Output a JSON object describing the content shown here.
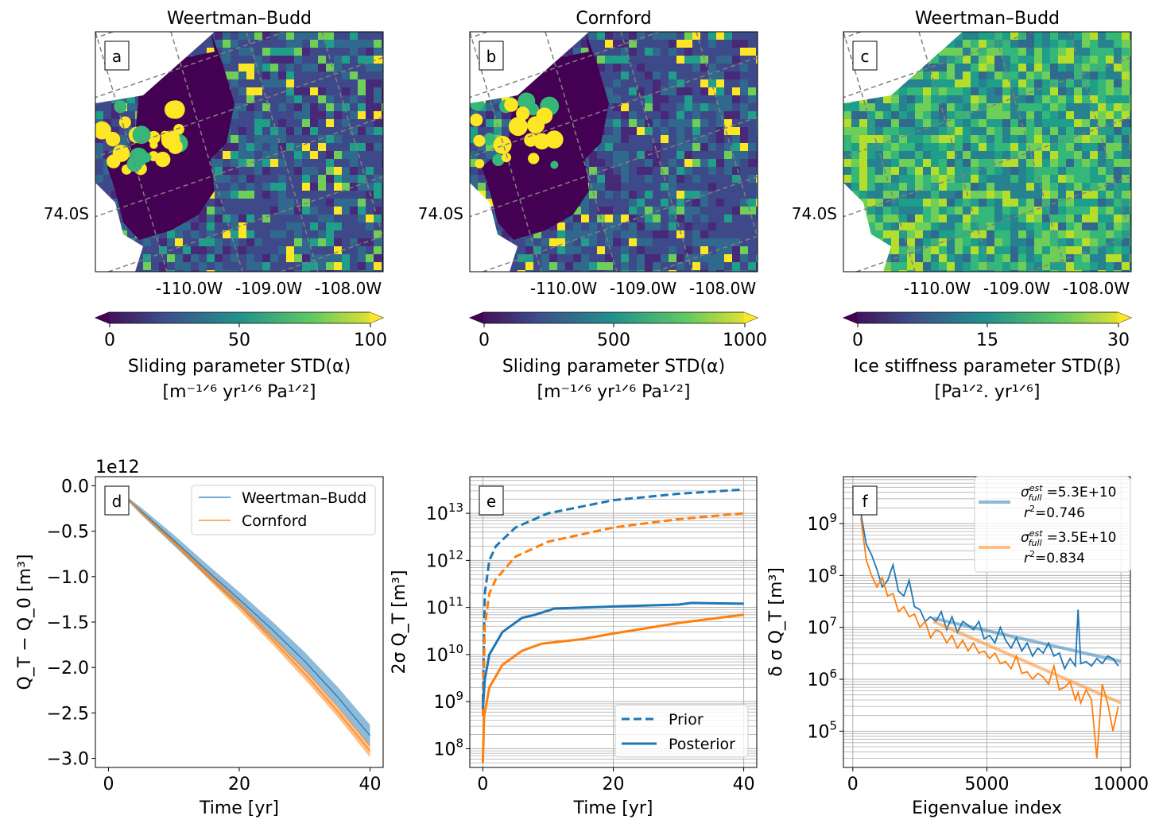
{
  "maps": [
    {
      "label": "a",
      "title": "Weertman–Budd",
      "lat_label": "74.0S",
      "lon_labels": [
        "-110.0W",
        "-109.0W",
        "-108.0W"
      ],
      "colorbar": {
        "ticks": [
          "0",
          "50",
          "100"
        ],
        "label_line1": "Sliding parameter STD(α)",
        "label_line2": "[m⁻¹ᐟ⁶ yr¹ᐟ⁶ Pa¹ᐟ²]",
        "colormap": "viridis",
        "extend": "both"
      },
      "style": "dark"
    },
    {
      "label": "b",
      "title": "Cornford",
      "lat_label": "74.0S",
      "lon_labels": [
        "-110.0W",
        "-109.0W",
        "-108.0W"
      ],
      "colorbar": {
        "ticks": [
          "0",
          "500",
          "1000"
        ],
        "label_line1": "Sliding parameter STD(α)",
        "label_line2": "[m⁻¹ᐟ⁶ yr¹ᐟ⁶ Pa¹ᐟ²]",
        "colormap": "viridis",
        "extend": "both"
      },
      "style": "dark"
    },
    {
      "label": "c",
      "title": "Weertman–Budd",
      "lat_label": "74.0S",
      "lon_labels": [
        "-110.0W",
        "-109.0W",
        "-108.0W"
      ],
      "colorbar": {
        "ticks": [
          "0",
          "15",
          "30"
        ],
        "label_line1": "Ice stiffness parameter STD(β)",
        "label_line2": "[Pa¹ᐟ². yr¹ᐟ⁶]",
        "colormap": "viridis",
        "extend": "both"
      },
      "style": "bright"
    }
  ],
  "colors": {
    "blue": "#1f77b4",
    "orange": "#ff7f0e"
  },
  "chart_data": [
    {
      "panel": "d",
      "type": "line",
      "xlabel": "Time [yr]",
      "ylabel": "Q_T − Q_0 [m³]",
      "offset_text": "1e12",
      "xlim": [
        -2,
        42
      ],
      "ylim": [
        -3.1,
        0.1
      ],
      "xticks": [
        "0",
        "20",
        "40"
      ],
      "yticks": [
        "0.0",
        "−0.5",
        "−1.0",
        "−1.5",
        "−2.0",
        "−2.5",
        "−3.0"
      ],
      "legend": "top-right",
      "grid": false,
      "x": [
        3,
        5,
        10,
        15,
        20,
        25,
        30,
        35,
        40
      ],
      "series": [
        {
          "name": "Weertman–Budd",
          "color": "#1f77b4",
          "values": [
            -0.15,
            -0.28,
            -0.6,
            -0.93,
            -1.25,
            -1.58,
            -1.93,
            -2.32,
            -2.75
          ],
          "band": [
            0.02,
            0.04,
            0.06,
            0.07,
            0.08,
            0.09,
            0.1,
            0.11,
            0.12
          ]
        },
        {
          "name": "Cornford",
          "color": "#ff7f0e",
          "values": [
            -0.15,
            -0.29,
            -0.62,
            -0.97,
            -1.32,
            -1.69,
            -2.07,
            -2.48,
            -2.92
          ],
          "band": [
            0.01,
            0.02,
            0.03,
            0.04,
            0.05,
            0.05,
            0.06,
            0.06,
            0.07
          ]
        }
      ]
    },
    {
      "panel": "e",
      "type": "line",
      "xlabel": "Time [yr]",
      "ylabel": "2σ Q_T [m³]",
      "yscale": "log",
      "xlim": [
        -2,
        42
      ],
      "ylim": [
        40000000.0,
        60000000000000.0
      ],
      "xticks": [
        "0",
        "20",
        "40"
      ],
      "yticks": [
        "10^8",
        "10^9",
        "10^10",
        "10^11",
        "10^12",
        "10^13"
      ],
      "legend": "bottom-right",
      "grid": true,
      "legend_entries": [
        {
          "name": "Prior",
          "style": "dashed"
        },
        {
          "name": "Posterior",
          "style": "solid"
        }
      ],
      "series": [
        {
          "group": "Prior",
          "color": "#1f77b4",
          "dash": true,
          "x": [
            0,
            0.3,
            1,
            2,
            5,
            10,
            20,
            30,
            40
          ],
          "values": [
            1000000000.0,
            200000000000.0,
            1000000000000.0,
            2000000000000.0,
            5000000000000.0,
            10000000000000.0,
            19000000000000.0,
            26000000000000.0,
            32000000000000.0
          ]
        },
        {
          "group": "Prior",
          "color": "#ff7f0e",
          "dash": true,
          "x": [
            0,
            0.3,
            1,
            2,
            5,
            10,
            20,
            30,
            40
          ],
          "values": [
            500000000.0,
            40000000000.0,
            200000000000.0,
            400000000000.0,
            1200000000000.0,
            2500000000000.0,
            5000000000000.0,
            7500000000000.0,
            10000000000000.0
          ]
        },
        {
          "group": "Posterior",
          "color": "#1f77b4",
          "dash": false,
          "x": [
            0,
            0.3,
            1,
            3,
            6,
            8,
            11,
            20,
            30,
            32,
            40
          ],
          "values": [
            700000000.0,
            3000000000.0,
            10000000000.0,
            30000000000.0,
            60000000000.0,
            70000000000.0,
            95000000000.0,
            105000000000.0,
            115000000000.0,
            125000000000.0,
            120000000000.0
          ]
        },
        {
          "group": "Posterior",
          "color": "#ff7f0e",
          "dash": false,
          "x": [
            0,
            0.2,
            1,
            3,
            6,
            9,
            15,
            20,
            25,
            30,
            40
          ],
          "values": [
            50000000.0,
            500000000.0,
            2000000000.0,
            6000000000.0,
            12000000000.0,
            17000000000.0,
            21000000000.0,
            28000000000.0,
            36000000000.0,
            47000000000.0,
            70000000000.0
          ]
        }
      ]
    },
    {
      "panel": "f",
      "type": "line",
      "xlabel": "Eigenvalue index",
      "ylabel": "δ σ Q_T [m³]",
      "yscale": "log",
      "xlim": [
        -350,
        10350
      ],
      "ylim": [
        20000.0,
        8000000000.0
      ],
      "xticks": [
        "0",
        "5000",
        "10000"
      ],
      "yticks": [
        "10^5",
        "10^6",
        "10^7",
        "10^8",
        "10^9"
      ],
      "legend": "top-right",
      "grid": true,
      "legend_entries": [
        {
          "sigma": "=5.3E+10",
          "r2": "=0.746",
          "color": "#1f77b4"
        },
        {
          "sigma": "=3.5E+10",
          "r2": "=0.834",
          "color": "#ff7f0e"
        }
      ],
      "x": [
        300,
        500,
        700,
        900,
        1100,
        1300,
        1500,
        1700,
        1900,
        2100,
        2300,
        2500,
        2700,
        2900,
        3100,
        3300,
        3500,
        3700,
        3900,
        4100,
        4300,
        4500,
        4700,
        4900,
        5100,
        5300,
        5500,
        5700,
        5900,
        6100,
        6300,
        6500,
        6700,
        6900,
        7100,
        7300,
        7500,
        7700,
        7900,
        8100,
        8300,
        8400,
        8500,
        8700,
        8900,
        9100,
        9300,
        9500,
        9700,
        9900
      ],
      "series": [
        {
          "color": "#1f77b4",
          "values": [
            1600000000.0,
            400000000.0,
            250000000.0,
            130000000.0,
            60000000.0,
            80000000.0,
            160000000.0,
            50000000.0,
            40000000.0,
            80000000.0,
            25000000.0,
            22000000.0,
            13000000.0,
            16000000.0,
            13000000.0,
            20000000.0,
            9000000.0,
            16000000.0,
            8000000.0,
            13000000.0,
            11000000.0,
            9000000.0,
            13000000.0,
            6000000.0,
            7000000.0,
            5000000.0,
            10000000.0,
            5600000.0,
            4000000.0,
            6300000.0,
            3500000.0,
            5000000.0,
            2800000.0,
            4000000.0,
            3200000.0,
            5000000.0,
            2800000.0,
            3200000.0,
            1600000.0,
            2500000.0,
            1800000.0,
            22000000.0,
            2000000.0,
            2200000.0,
            1800000.0,
            2500000.0,
            2000000.0,
            2800000.0,
            2500000.0,
            1800000.0
          ],
          "fit": {
            "x": [
              3000,
              10000
            ],
            "values": [
              15000000.0,
              2200000.0
            ]
          }
        },
        {
          "color": "#ff7f0e",
          "values": [
            1300000000.0,
            200000000.0,
            100000000.0,
            60000000.0,
            90000000.0,
            40000000.0,
            45000000.0,
            20000000.0,
            25000000.0,
            16000000.0,
            18000000.0,
            10000000.0,
            13000000.0,
            6300000.0,
            9000000.0,
            8000000.0,
            5000000.0,
            7000000.0,
            4000000.0,
            5600000.0,
            3500000.0,
            5000000.0,
            3200000.0,
            3500000.0,
            2500000.0,
            3200000.0,
            2000000.0,
            2200000.0,
            1600000.0,
            2800000.0,
            1300000.0,
            1400000.0,
            1000000.0,
            1300000.0,
            1100000.0,
            800000.0,
            1800000.0,
            630000.0,
            700000.0,
            900000.0,
            400000.0,
            560000.0,
            350000.0,
            630000.0,
            400000.0,
            30000.0,
            800000.0,
            350000.0,
            100000.0,
            300000.0
          ],
          "fit": {
            "x": [
              3000,
              10000
            ],
            "values": [
              13000000.0,
              350000.0
            ]
          }
        }
      ]
    }
  ]
}
